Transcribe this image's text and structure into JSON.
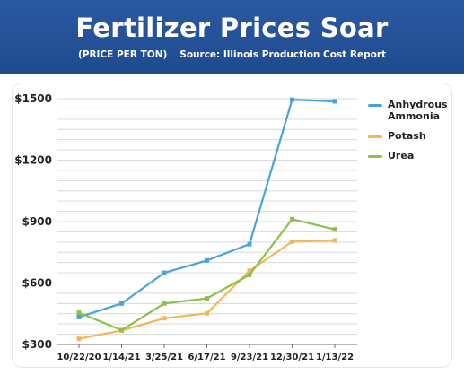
{
  "header": {
    "title": "Fertilizer Prices Soar",
    "unit_note": "(PRICE PER TON)",
    "source": "Source: Illinois Production Cost Report"
  },
  "chart_data": {
    "type": "line",
    "title": "Fertilizer Prices Soar",
    "subtitle": "(PRICE PER TON)",
    "source": "Source: Illinois Production Cost Report",
    "categories": [
      "10/22/20",
      "1/14/21",
      "3/25/21",
      "6/17/21",
      "9/23/21",
      "12/30/21",
      "1/13/22"
    ],
    "series": [
      {
        "name": "Anhydrous Ammonia",
        "color": "#4aa3d8",
        "values": [
          434,
          500,
          650,
          710,
          790,
          1495,
          1487
        ]
      },
      {
        "name": "Potash",
        "color": "#f5b55a",
        "values": [
          328,
          368,
          428,
          452,
          660,
          802,
          808
        ]
      },
      {
        "name": "Urea",
        "color": "#8cbf4b",
        "values": [
          455,
          370,
          500,
          525,
          640,
          912,
          862
        ]
      }
    ],
    "y_ticks": [
      "$300",
      "$600",
      "$900",
      "$1200",
      "$1500"
    ],
    "ylim": [
      300,
      1500
    ],
    "grid": true,
    "legend_position": "right"
  }
}
